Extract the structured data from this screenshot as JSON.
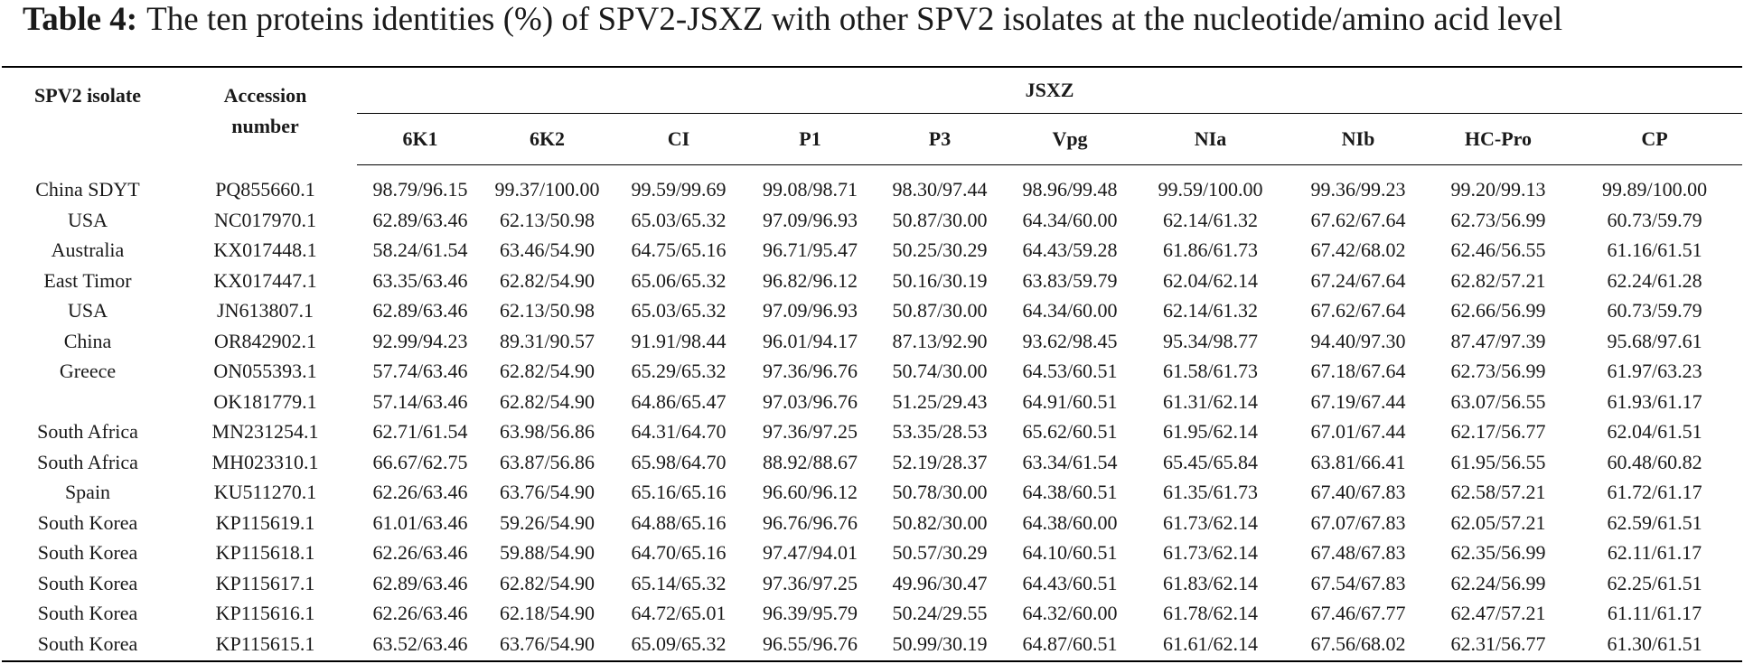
{
  "caption": {
    "label": "Table 4:",
    "text": "The ten proteins identities (%) of SPV2-JSXZ with other SPV2 isolates at the nucleotide/amino acid level"
  },
  "table": {
    "headers": {
      "isolate": "SPV2 isolate",
      "accession": "Accession number",
      "group": "JSXZ",
      "proteins": [
        "6K1",
        "6K2",
        "CI",
        "P1",
        "P3",
        "Vpg",
        "NIa",
        "NIb",
        "HC-Pro",
        "CP"
      ]
    },
    "rows": [
      {
        "isolate": "China SDYT",
        "accession": "PQ855660.1",
        "values": [
          "98.79/96.15",
          "99.37/100.00",
          "99.59/99.69",
          "99.08/98.71",
          "98.30/97.44",
          "98.96/99.48",
          "99.59/100.00",
          "99.36/99.23",
          "99.20/99.13",
          "99.89/100.00"
        ]
      },
      {
        "isolate": "USA",
        "accession": "NC017970.1",
        "values": [
          "62.89/63.46",
          "62.13/50.98",
          "65.03/65.32",
          "97.09/96.93",
          "50.87/30.00",
          "64.34/60.00",
          "62.14/61.32",
          "67.62/67.64",
          "62.73/56.99",
          "60.73/59.79"
        ]
      },
      {
        "isolate": "Australia",
        "accession": "KX017448.1",
        "values": [
          "58.24/61.54",
          "63.46/54.90",
          "64.75/65.16",
          "96.71/95.47",
          "50.25/30.29",
          "64.43/59.28",
          "61.86/61.73",
          "67.42/68.02",
          "62.46/56.55",
          "61.16/61.51"
        ]
      },
      {
        "isolate": "East Timor",
        "accession": "KX017447.1",
        "values": [
          "63.35/63.46",
          "62.82/54.90",
          "65.06/65.32",
          "96.82/96.12",
          "50.16/30.19",
          "63.83/59.79",
          "62.04/62.14",
          "67.24/67.64",
          "62.82/57.21",
          "62.24/61.28"
        ]
      },
      {
        "isolate": "USA",
        "accession": "JN613807.1",
        "values": [
          "62.89/63.46",
          "62.13/50.98",
          "65.03/65.32",
          "97.09/96.93",
          "50.87/30.00",
          "64.34/60.00",
          "62.14/61.32",
          "67.62/67.64",
          "62.66/56.99",
          "60.73/59.79"
        ]
      },
      {
        "isolate": "China",
        "accession": "OR842902.1",
        "values": [
          "92.99/94.23",
          "89.31/90.57",
          "91.91/98.44",
          "96.01/94.17",
          "87.13/92.90",
          "93.62/98.45",
          "95.34/98.77",
          "94.40/97.30",
          "87.47/97.39",
          "95.68/97.61"
        ]
      },
      {
        "isolate": "Greece",
        "accession": "ON055393.1",
        "values": [
          "57.74/63.46",
          "62.82/54.90",
          "65.29/65.32",
          "97.36/96.76",
          "50.74/30.00",
          "64.53/60.51",
          "61.58/61.73",
          "67.18/67.64",
          "62.73/56.99",
          "61.97/63.23"
        ]
      },
      {
        "isolate": "",
        "accession": "OK181779.1",
        "values": [
          "57.14/63.46",
          "62.82/54.90",
          "64.86/65.47",
          "97.03/96.76",
          "51.25/29.43",
          "64.91/60.51",
          "61.31/62.14",
          "67.19/67.44",
          "63.07/56.55",
          "61.93/61.17"
        ]
      },
      {
        "isolate": "South Africa",
        "accession": "MN231254.1",
        "values": [
          "62.71/61.54",
          "63.98/56.86",
          "64.31/64.70",
          "97.36/97.25",
          "53.35/28.53",
          "65.62/60.51",
          "61.95/62.14",
          "67.01/67.44",
          "62.17/56.77",
          "62.04/61.51"
        ]
      },
      {
        "isolate": "South Africa",
        "accession": "MH023310.1",
        "values": [
          "66.67/62.75",
          "63.87/56.86",
          "65.98/64.70",
          "88.92/88.67",
          "52.19/28.37",
          "63.34/61.54",
          "65.45/65.84",
          "63.81/66.41",
          "61.95/56.55",
          "60.48/60.82"
        ]
      },
      {
        "isolate": "Spain",
        "accession": "KU511270.1",
        "values": [
          "62.26/63.46",
          "63.76/54.90",
          "65.16/65.16",
          "96.60/96.12",
          "50.78/30.00",
          "64.38/60.51",
          "61.35/61.73",
          "67.40/67.83",
          "62.58/57.21",
          "61.72/61.17"
        ]
      },
      {
        "isolate": "South Korea",
        "accession": "KP115619.1",
        "values": [
          "61.01/63.46",
          "59.26/54.90",
          "64.88/65.16",
          "96.76/96.76",
          "50.82/30.00",
          "64.38/60.00",
          "61.73/62.14",
          "67.07/67.83",
          "62.05/57.21",
          "62.59/61.51"
        ]
      },
      {
        "isolate": "South Korea",
        "accession": "KP115618.1",
        "values": [
          "62.26/63.46",
          "59.88/54.90",
          "64.70/65.16",
          "97.47/94.01",
          "50.57/30.29",
          "64.10/60.51",
          "61.73/62.14",
          "67.48/67.83",
          "62.35/56.99",
          "62.11/61.17"
        ]
      },
      {
        "isolate": "South Korea",
        "accession": "KP115617.1",
        "values": [
          "62.89/63.46",
          "62.82/54.90",
          "65.14/65.32",
          "97.36/97.25",
          "49.96/30.47",
          "64.43/60.51",
          "61.83/62.14",
          "67.54/67.83",
          "62.24/56.99",
          "62.25/61.51"
        ]
      },
      {
        "isolate": "South Korea",
        "accession": "KP115616.1",
        "values": [
          "62.26/63.46",
          "62.18/54.90",
          "64.72/65.01",
          "96.39/95.79",
          "50.24/29.55",
          "64.32/60.00",
          "61.78/62.14",
          "67.46/67.77",
          "62.47/57.21",
          "61.11/61.17"
        ]
      },
      {
        "isolate": "South Korea",
        "accession": "KP115615.1",
        "values": [
          "63.52/63.46",
          "63.76/54.90",
          "65.09/65.32",
          "96.55/96.76",
          "50.99/30.19",
          "64.87/60.51",
          "61.61/62.14",
          "67.56/68.02",
          "62.31/56.77",
          "61.30/61.51"
        ]
      }
    ]
  }
}
